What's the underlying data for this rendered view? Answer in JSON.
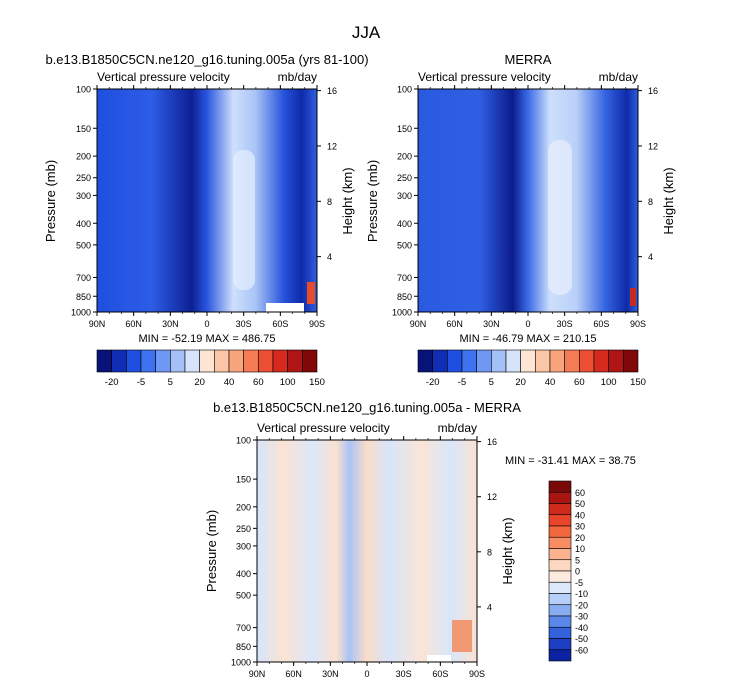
{
  "page": {
    "title": "JJA"
  },
  "colors": {
    "dark_blue": "#0a1f8f",
    "mid_blue": "#2f5fe0",
    "light_blue": "#9ebcf5",
    "pale_blue": "#d4e4fb",
    "pale_orange": "#fbe0cf",
    "orange": "#f07a4a",
    "dark_red": "#8b0a0a"
  },
  "chart_data": [
    {
      "type": "heatmap",
      "title": "b.e13.B1850C5CN.ne120_g16.tuning.005a (yrs 81-100)",
      "left_string": "Vertical pressure velocity",
      "right_string": "mb/day",
      "xlabel": "",
      "ylabel": "Pressure (mb)",
      "y2label": "Height (km)",
      "x_ticks": [
        "90N",
        "60N",
        "30N",
        "0",
        "30S",
        "60S",
        "90S"
      ],
      "y_ticks": [
        "100",
        "150",
        "200",
        "250",
        "300",
        "400",
        "500",
        "700",
        "850",
        "1000"
      ],
      "y2_ticks": [
        "16",
        "12",
        "8",
        "4"
      ],
      "stats": "MIN = -52.19   MAX = 486.75",
      "colorbar": {
        "orientation": "horizontal",
        "labels": [
          "-20",
          "-5",
          "5",
          "20",
          "40",
          "60",
          "100",
          "150"
        ],
        "colors": [
          "#08137a",
          "#0f2db5",
          "#1f4fe0",
          "#3f72f0",
          "#6f98f5",
          "#a3c0f8",
          "#d5e3fb",
          "#fde4d3",
          "#fbc6a6",
          "#f8a47c",
          "#f47b54",
          "#ec4f33",
          "#d62a1e",
          "#b01515",
          "#800808"
        ]
      }
    },
    {
      "type": "heatmap",
      "title": "MERRA",
      "left_string": "Vertical pressure velocity",
      "right_string": "mb/day",
      "xlabel": "",
      "ylabel": "Pressure (mb)",
      "y2label": "Height (km)",
      "x_ticks": [
        "90N",
        "60N",
        "30N",
        "0",
        "30S",
        "60S",
        "90S"
      ],
      "y_ticks": [
        "100",
        "150",
        "200",
        "250",
        "300",
        "400",
        "500",
        "700",
        "850",
        "1000"
      ],
      "y2_ticks": [
        "16",
        "12",
        "8",
        "4"
      ],
      "stats": "MIN = -46.79   MAX = 210.15",
      "colorbar": {
        "orientation": "horizontal",
        "labels": [
          "-20",
          "-5",
          "5",
          "20",
          "40",
          "60",
          "100",
          "150"
        ],
        "colors": [
          "#08137a",
          "#0f2db5",
          "#1f4fe0",
          "#3f72f0",
          "#6f98f5",
          "#a3c0f8",
          "#d5e3fb",
          "#fde4d3",
          "#fbc6a6",
          "#f8a47c",
          "#f47b54",
          "#ec4f33",
          "#d62a1e",
          "#b01515",
          "#800808"
        ]
      }
    },
    {
      "type": "heatmap",
      "title": "b.e13.B1850C5CN.ne120_g16.tuning.005a - MERRA",
      "left_string": "Vertical pressure velocity",
      "right_string": "mb/day",
      "xlabel": "",
      "ylabel": "Pressure (mb)",
      "y2label": "Height (km)",
      "x_ticks": [
        "90N",
        "60N",
        "30N",
        "0",
        "30S",
        "60S",
        "90S"
      ],
      "y_ticks": [
        "100",
        "150",
        "200",
        "250",
        "300",
        "400",
        "500",
        "700",
        "850",
        "1000"
      ],
      "y2_ticks": [
        "16",
        "12",
        "8",
        "4"
      ],
      "stats": "MIN = -31.41   MAX =  38.75",
      "colorbar": {
        "orientation": "vertical",
        "labels": [
          "60",
          "50",
          "40",
          "30",
          "20",
          "10",
          "5",
          "0",
          "-5",
          "-10",
          "-20",
          "-30",
          "-40",
          "-50",
          "-60"
        ],
        "colors": [
          "#7a0a0a",
          "#a81512",
          "#cf2a1c",
          "#e8452c",
          "#f2673e",
          "#f78e63",
          "#fab28f",
          "#fcd8c1",
          "#fdebde",
          "#dde9fb",
          "#b6cff8",
          "#88adf3",
          "#5a88ea",
          "#3462dd",
          "#1d3fc4",
          "#0c22a0"
        ]
      }
    }
  ]
}
